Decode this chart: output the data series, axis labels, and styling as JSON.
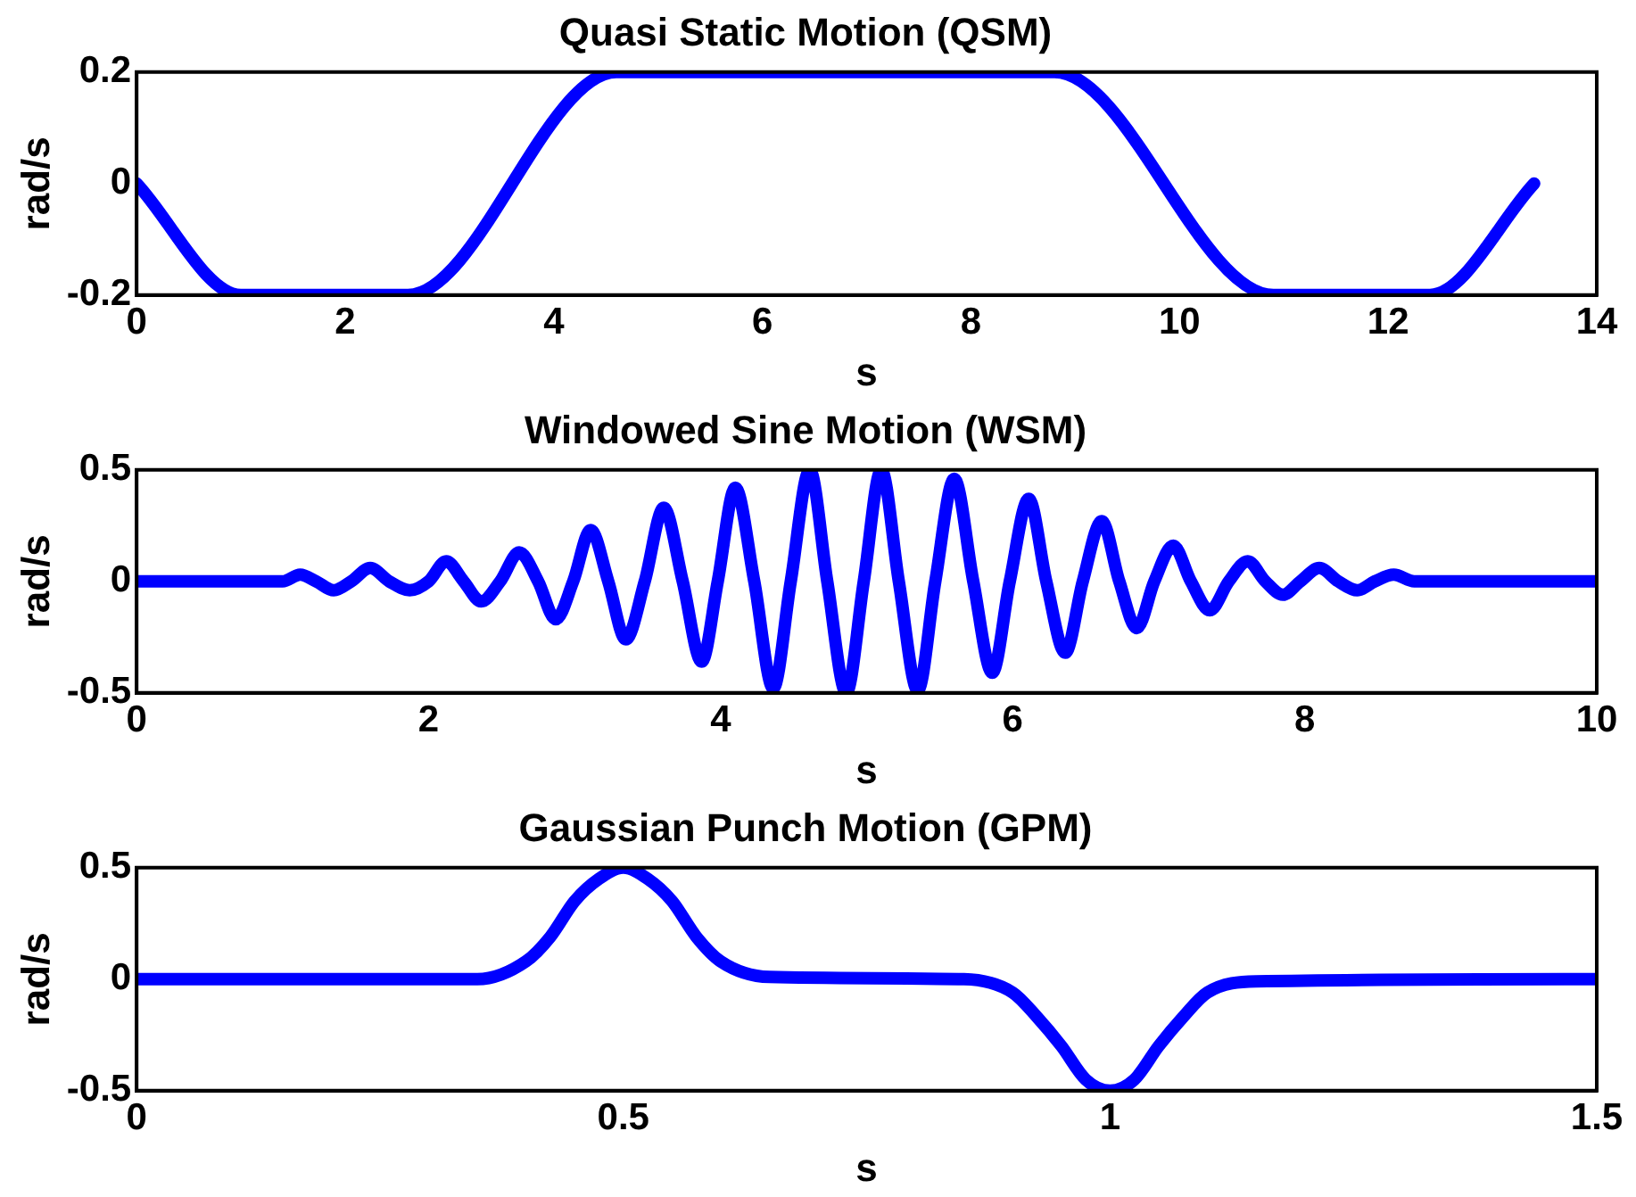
{
  "chart_data": [
    {
      "type": "line",
      "title": "Quasi Static Motion (QSM)",
      "xlabel": "s",
      "ylabel": "rad/s",
      "color": "#0000ff",
      "x": [
        0,
        1,
        2.6,
        4.6,
        8.8,
        10.9,
        12.4,
        13.4
      ],
      "values": [
        0,
        -0.2,
        -0.2,
        0.2,
        0.2,
        -0.2,
        -0.2,
        0
      ],
      "xlim": [
        0,
        14
      ],
      "ylim": [
        -0.2,
        0.2
      ],
      "xticks": [
        0,
        2,
        4,
        6,
        8,
        10,
        12,
        14
      ],
      "yticks": [
        -0.2,
        0,
        0.2
      ]
    },
    {
      "type": "line",
      "title": "Windowed Sine Motion (WSM)",
      "xlabel": "s",
      "ylabel": "rad/s",
      "color": "#0000ff",
      "x": [
        0,
        1.0,
        1.12,
        1.23,
        1.35,
        1.47,
        1.6,
        1.73,
        1.87,
        2.0,
        2.12,
        2.24,
        2.36,
        2.49,
        2.62,
        2.75,
        2.87,
        2.99,
        3.11,
        3.23,
        3.35,
        3.48,
        3.61,
        3.74,
        3.87,
        3.98,
        4.1,
        4.23,
        4.36,
        4.48,
        4.61,
        4.73,
        4.86,
        4.98,
        5.1,
        5.22,
        5.35,
        5.47,
        5.6,
        5.73,
        5.86,
        5.98,
        6.11,
        6.23,
        6.36,
        6.48,
        6.61,
        6.73,
        6.85,
        6.97,
        7.1,
        7.22,
        7.35,
        7.48,
        7.61,
        7.73,
        7.85,
        7.97,
        8.1,
        8.23,
        8.36,
        8.48,
        8.61,
        8.75,
        10
      ],
      "values": [
        0,
        0,
        0.03,
        0,
        -0.04,
        0,
        0.06,
        0,
        -0.04,
        0,
        0.09,
        0,
        -0.09,
        0,
        0.13,
        0,
        -0.17,
        0,
        0.23,
        0,
        -0.26,
        0,
        0.33,
        0,
        -0.36,
        0,
        0.42,
        0,
        -0.48,
        0,
        0.5,
        0,
        -0.5,
        0,
        0.5,
        0,
        -0.49,
        0,
        0.46,
        0,
        -0.41,
        0,
        0.37,
        0,
        -0.32,
        0,
        0.27,
        0,
        -0.21,
        0,
        0.16,
        0,
        -0.13,
        0,
        0.09,
        0,
        -0.06,
        0,
        0.06,
        0,
        -0.04,
        0,
        0.03,
        0,
        0
      ],
      "xlim": [
        0,
        10
      ],
      "ylim": [
        -0.5,
        0.5
      ],
      "xticks": [
        0,
        2,
        4,
        6,
        8,
        10
      ],
      "yticks": [
        -0.5,
        0,
        0.5
      ]
    },
    {
      "type": "line",
      "title": "Gaussian Punch Motion (GPM)",
      "xlabel": "s",
      "ylabel": "rad/s",
      "color": "#0000ff",
      "x": [
        0,
        0.35,
        0.4,
        0.425,
        0.45,
        0.475,
        0.5,
        0.525,
        0.55,
        0.575,
        0.6,
        0.65,
        0.85,
        0.9,
        0.925,
        0.95,
        0.975,
        1.0,
        1.025,
        1.05,
        1.075,
        1.1,
        1.15,
        1.5
      ],
      "values": [
        0,
        0,
        0.08,
        0.19,
        0.35,
        0.45,
        0.5,
        0.45,
        0.35,
        0.19,
        0.08,
        0.01,
        0,
        -0.06,
        -0.17,
        -0.3,
        -0.45,
        -0.5,
        -0.45,
        -0.3,
        -0.17,
        -0.06,
        -0.01,
        0
      ],
      "xlim": [
        0,
        1.5
      ],
      "ylim": [
        -0.5,
        0.5
      ],
      "xticks": [
        0,
        0.5,
        1,
        1.5
      ],
      "yticks": [
        -0.5,
        0,
        0.5
      ]
    }
  ]
}
